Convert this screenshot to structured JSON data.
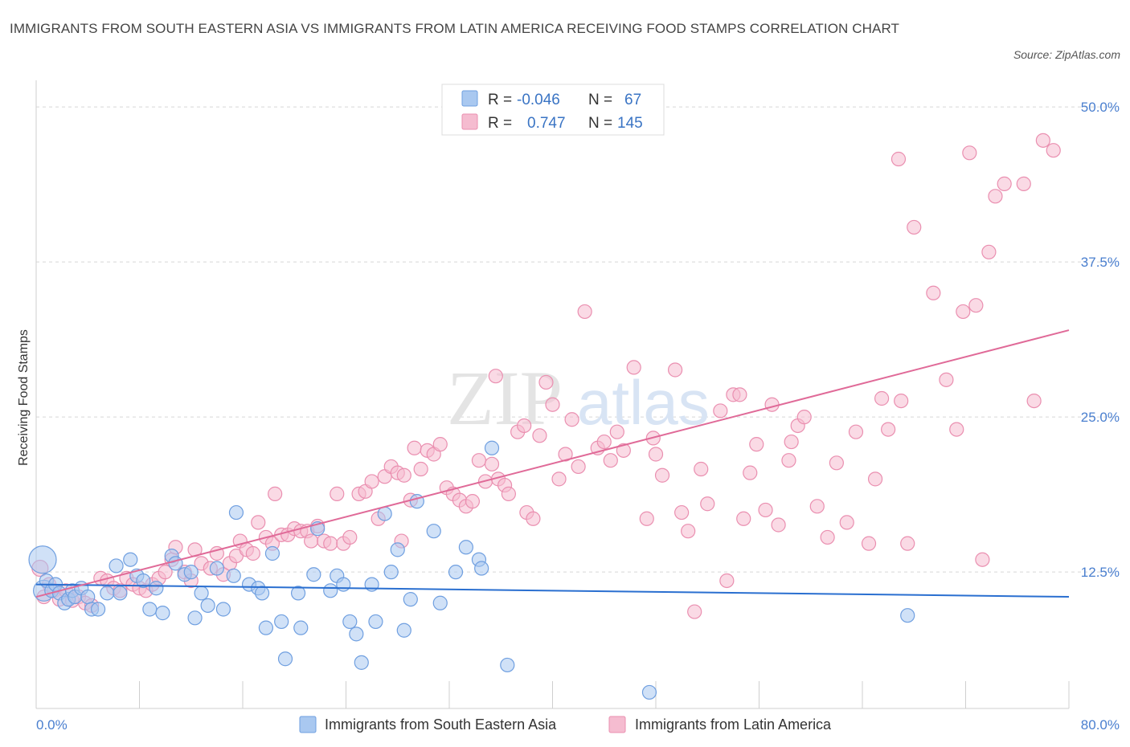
{
  "title": "IMMIGRANTS FROM SOUTH EASTERN ASIA VS IMMIGRANTS FROM LATIN AMERICA RECEIVING FOOD STAMPS CORRELATION CHART",
  "source": "Source: ZipAtlas.com",
  "watermark": "ZIPatlas",
  "colors": {
    "blue_fill": "#a9c8f0",
    "blue_stroke": "#6f9fe0",
    "blue_line": "#2a6fd0",
    "pink_fill": "#f5bcd0",
    "pink_stroke": "#ea8fb0",
    "pink_line": "#e06a98",
    "grid": "#d8d8d8",
    "tick_label": "#4a7fcf"
  },
  "legend": {
    "r_label": "R =",
    "n_label": "N =",
    "blue_r": "-0.046",
    "blue_n": "67",
    "pink_r": "0.747",
    "pink_n": "145"
  },
  "chart_data": {
    "type": "scatter",
    "title": "IMMIGRANTS FROM SOUTH EASTERN ASIA VS IMMIGRANTS FROM LATIN AMERICA RECEIVING FOOD STAMPS CORRELATION CHART",
    "xlabel": "",
    "ylabel": "Receiving Food Stamps",
    "xlim": [
      0,
      80
    ],
    "ylim": [
      1.5,
      51.5
    ],
    "x_tick_labels": [
      "0.0%",
      "80.0%"
    ],
    "y_ticks": [
      12.5,
      25.0,
      37.5,
      50.0
    ],
    "y_tick_labels": [
      "12.5%",
      "25.0%",
      "37.5%",
      "50.0%"
    ],
    "grid": "horizontal dashed",
    "legend_placement": "top-center",
    "series": [
      {
        "name": "Immigrants from South Eastern Asia",
        "color": "#a9c8f0",
        "trend": {
          "x": [
            0,
            80
          ],
          "y": [
            11.5,
            10.5
          ]
        },
        "points": [
          [
            0.5,
            13.5
          ],
          [
            0.6,
            11.0
          ],
          [
            0.8,
            11.8
          ],
          [
            1.2,
            11.0
          ],
          [
            1.5,
            11.5
          ],
          [
            1.8,
            10.8
          ],
          [
            2.2,
            10.0
          ],
          [
            2.5,
            10.3
          ],
          [
            2.8,
            11.0
          ],
          [
            3.0,
            10.5
          ],
          [
            3.5,
            11.2
          ],
          [
            4.0,
            10.5
          ],
          [
            4.3,
            9.5
          ],
          [
            4.8,
            9.5
          ],
          [
            5.5,
            10.8
          ],
          [
            6.2,
            13.0
          ],
          [
            6.5,
            10.8
          ],
          [
            7.3,
            13.5
          ],
          [
            7.8,
            12.2
          ],
          [
            8.3,
            11.8
          ],
          [
            8.8,
            9.5
          ],
          [
            9.3,
            11.2
          ],
          [
            9.8,
            9.2
          ],
          [
            10.5,
            13.8
          ],
          [
            10.8,
            13.2
          ],
          [
            11.5,
            12.3
          ],
          [
            12.0,
            12.5
          ],
          [
            12.3,
            8.8
          ],
          [
            12.8,
            10.8
          ],
          [
            13.3,
            9.8
          ],
          [
            14.0,
            12.8
          ],
          [
            14.5,
            9.5
          ],
          [
            15.3,
            12.2
          ],
          [
            15.5,
            17.3
          ],
          [
            16.5,
            11.5
          ],
          [
            17.2,
            11.2
          ],
          [
            17.5,
            10.8
          ],
          [
            17.8,
            8.0
          ],
          [
            18.3,
            14.0
          ],
          [
            19.0,
            8.5
          ],
          [
            19.3,
            5.5
          ],
          [
            20.3,
            10.8
          ],
          [
            20.5,
            8.0
          ],
          [
            21.5,
            12.3
          ],
          [
            21.8,
            16.0
          ],
          [
            22.8,
            11.0
          ],
          [
            23.3,
            12.2
          ],
          [
            23.8,
            11.5
          ],
          [
            24.3,
            8.5
          ],
          [
            24.8,
            7.5
          ],
          [
            25.2,
            5.2
          ],
          [
            26.0,
            11.5
          ],
          [
            26.3,
            8.5
          ],
          [
            27.0,
            17.2
          ],
          [
            27.5,
            12.5
          ],
          [
            28.0,
            14.3
          ],
          [
            28.5,
            7.8
          ],
          [
            29.0,
            10.3
          ],
          [
            29.5,
            18.2
          ],
          [
            30.8,
            15.8
          ],
          [
            31.3,
            10.0
          ],
          [
            32.5,
            12.5
          ],
          [
            33.3,
            14.5
          ],
          [
            34.3,
            13.5
          ],
          [
            34.5,
            12.8
          ],
          [
            35.3,
            22.5
          ],
          [
            36.5,
            5.0
          ],
          [
            47.5,
            2.8
          ],
          [
            67.5,
            9.0
          ]
        ]
      },
      {
        "name": "Immigrants from Latin America",
        "color": "#f5bcd0",
        "trend": {
          "x": [
            0,
            80
          ],
          "y": [
            10.5,
            32.0
          ]
        },
        "points": [
          [
            0.3,
            12.8
          ],
          [
            0.6,
            10.5
          ],
          [
            1.0,
            11.5
          ],
          [
            1.4,
            11.0
          ],
          [
            1.8,
            10.3
          ],
          [
            2.3,
            11.0
          ],
          [
            2.8,
            10.2
          ],
          [
            3.3,
            10.5
          ],
          [
            3.8,
            10.0
          ],
          [
            4.3,
            9.8
          ],
          [
            5.0,
            12.0
          ],
          [
            5.5,
            11.8
          ],
          [
            6.0,
            11.2
          ],
          [
            6.5,
            11.0
          ],
          [
            7.0,
            12.0
          ],
          [
            7.5,
            11.5
          ],
          [
            8.0,
            11.2
          ],
          [
            8.5,
            11.0
          ],
          [
            9.0,
            11.5
          ],
          [
            9.5,
            12.0
          ],
          [
            10.0,
            12.5
          ],
          [
            10.5,
            13.5
          ],
          [
            10.8,
            14.5
          ],
          [
            11.5,
            12.5
          ],
          [
            12.0,
            11.8
          ],
          [
            12.3,
            14.3
          ],
          [
            12.8,
            13.2
          ],
          [
            13.5,
            12.8
          ],
          [
            14.0,
            14.0
          ],
          [
            14.5,
            12.3
          ],
          [
            15.0,
            13.2
          ],
          [
            15.5,
            13.8
          ],
          [
            15.8,
            15.0
          ],
          [
            16.3,
            14.3
          ],
          [
            16.8,
            14.0
          ],
          [
            17.2,
            16.5
          ],
          [
            17.8,
            15.3
          ],
          [
            18.3,
            14.8
          ],
          [
            18.5,
            18.8
          ],
          [
            19.0,
            15.5
          ],
          [
            19.5,
            15.5
          ],
          [
            20.0,
            16.0
          ],
          [
            20.5,
            15.8
          ],
          [
            21.0,
            15.8
          ],
          [
            21.3,
            15.0
          ],
          [
            21.8,
            16.2
          ],
          [
            22.3,
            15.0
          ],
          [
            22.8,
            14.8
          ],
          [
            23.3,
            18.8
          ],
          [
            23.8,
            14.8
          ],
          [
            24.3,
            15.3
          ],
          [
            25.0,
            18.8
          ],
          [
            25.5,
            19.0
          ],
          [
            26.0,
            19.8
          ],
          [
            26.5,
            16.8
          ],
          [
            27.0,
            20.2
          ],
          [
            27.5,
            21.0
          ],
          [
            28.0,
            20.5
          ],
          [
            28.3,
            15.0
          ],
          [
            28.5,
            20.3
          ],
          [
            29.0,
            18.3
          ],
          [
            29.3,
            22.5
          ],
          [
            29.8,
            20.8
          ],
          [
            30.3,
            22.3
          ],
          [
            30.8,
            22.0
          ],
          [
            31.3,
            22.8
          ],
          [
            31.8,
            19.3
          ],
          [
            32.3,
            18.8
          ],
          [
            32.8,
            18.3
          ],
          [
            33.3,
            17.8
          ],
          [
            33.8,
            18.2
          ],
          [
            34.3,
            21.5
          ],
          [
            34.8,
            19.8
          ],
          [
            35.3,
            21.2
          ],
          [
            35.6,
            28.3
          ],
          [
            35.8,
            20.0
          ],
          [
            36.3,
            19.5
          ],
          [
            36.6,
            18.8
          ],
          [
            37.3,
            23.8
          ],
          [
            37.8,
            24.3
          ],
          [
            38.0,
            17.3
          ],
          [
            38.5,
            16.8
          ],
          [
            39.0,
            23.5
          ],
          [
            39.5,
            27.8
          ],
          [
            40.0,
            26.0
          ],
          [
            40.5,
            20.0
          ],
          [
            41.0,
            22.0
          ],
          [
            41.5,
            24.8
          ],
          [
            42.0,
            21.0
          ],
          [
            42.5,
            33.5
          ],
          [
            43.5,
            22.5
          ],
          [
            44.0,
            23.0
          ],
          [
            44.5,
            21.5
          ],
          [
            45.0,
            23.8
          ],
          [
            45.5,
            22.3
          ],
          [
            46.3,
            29.0
          ],
          [
            47.3,
            16.8
          ],
          [
            47.8,
            23.3
          ],
          [
            48.0,
            22.0
          ],
          [
            48.5,
            20.3
          ],
          [
            49.5,
            28.8
          ],
          [
            50.0,
            17.3
          ],
          [
            50.5,
            15.8
          ],
          [
            51.0,
            9.3
          ],
          [
            51.5,
            20.8
          ],
          [
            52.0,
            18.0
          ],
          [
            53.0,
            25.5
          ],
          [
            53.5,
            11.8
          ],
          [
            54.0,
            26.8
          ],
          [
            54.5,
            26.8
          ],
          [
            54.8,
            16.8
          ],
          [
            55.3,
            20.5
          ],
          [
            55.8,
            22.8
          ],
          [
            56.5,
            17.5
          ],
          [
            57.0,
            26.0
          ],
          [
            57.5,
            16.3
          ],
          [
            58.3,
            21.5
          ],
          [
            58.5,
            23.0
          ],
          [
            59.0,
            24.3
          ],
          [
            59.5,
            25.0
          ],
          [
            60.5,
            17.8
          ],
          [
            61.3,
            15.3
          ],
          [
            62.0,
            21.3
          ],
          [
            62.8,
            16.5
          ],
          [
            63.5,
            23.8
          ],
          [
            64.5,
            14.8
          ],
          [
            65.0,
            20.0
          ],
          [
            65.5,
            26.5
          ],
          [
            66.0,
            24.0
          ],
          [
            66.8,
            45.8
          ],
          [
            67.0,
            26.3
          ],
          [
            67.5,
            14.8
          ],
          [
            68.0,
            40.3
          ],
          [
            69.5,
            35.0
          ],
          [
            70.5,
            28.0
          ],
          [
            71.3,
            24.0
          ],
          [
            71.8,
            33.5
          ],
          [
            72.3,
            46.3
          ],
          [
            72.8,
            34.0
          ],
          [
            73.3,
            13.5
          ],
          [
            73.8,
            38.3
          ],
          [
            74.3,
            42.8
          ],
          [
            75.0,
            43.8
          ],
          [
            76.5,
            43.8
          ],
          [
            77.3,
            26.3
          ],
          [
            78.0,
            47.3
          ],
          [
            78.8,
            46.5
          ]
        ]
      }
    ]
  },
  "bottom_legend": [
    "Immigrants from South Eastern Asia",
    "Immigrants from Latin America"
  ]
}
